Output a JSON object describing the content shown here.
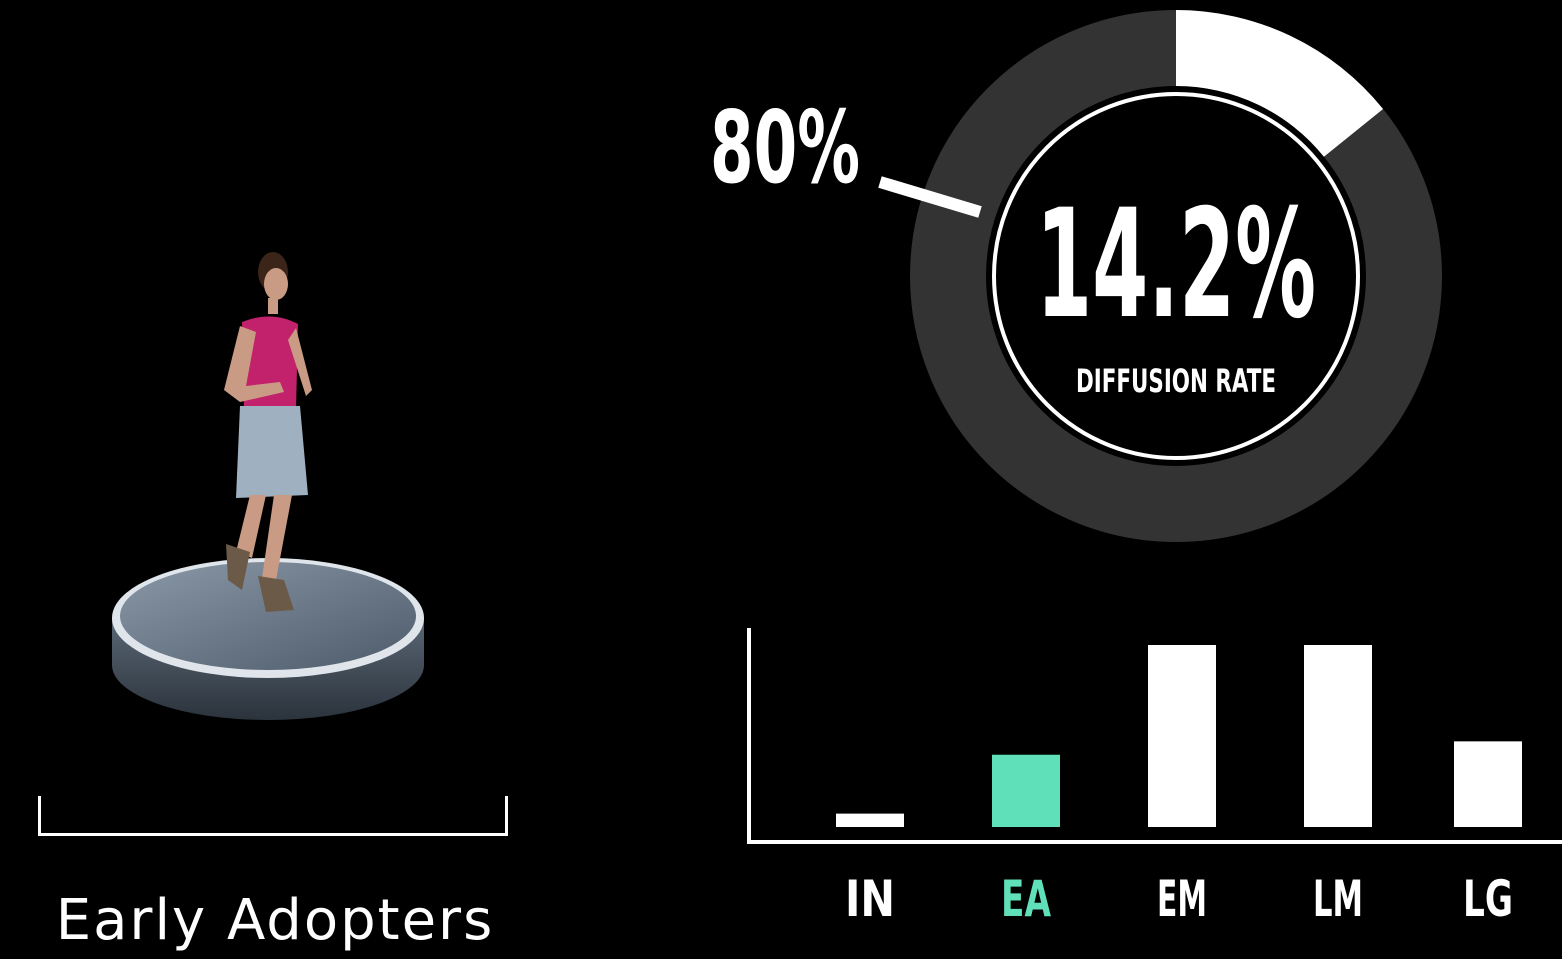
{
  "segment": {
    "label": "Early Adopters"
  },
  "donut": {
    "callout_value": "80%",
    "center_value": "14.2%",
    "center_label": "DIFFUSION RATE",
    "filled_fraction": 0.142,
    "ring_color": "#333333",
    "fill_color": "#ffffff"
  },
  "chart_data": {
    "type": "bar",
    "categories": [
      "IN",
      "EA",
      "EM",
      "LM",
      "LG"
    ],
    "values": [
      2.5,
      13.5,
      34,
      34,
      16
    ],
    "highlight_category": "EA",
    "colors": {
      "default": "#ffffff",
      "highlight": "#5fe0b9"
    },
    "title": "",
    "xlabel": "",
    "ylabel": ""
  }
}
